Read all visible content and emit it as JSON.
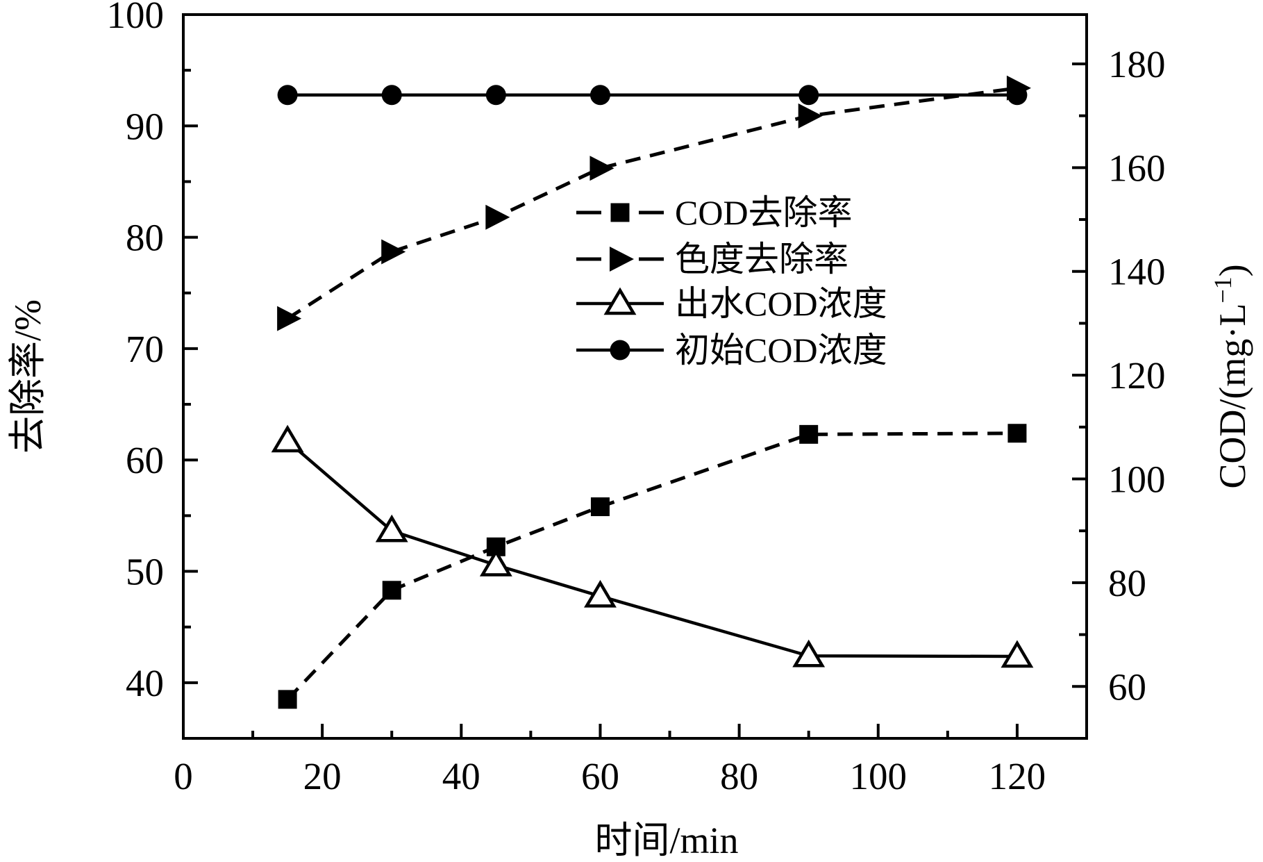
{
  "colors": {
    "ink": "#000000",
    "background": "#ffffff"
  },
  "chart_data": {
    "type": "line",
    "x": [
      15,
      30,
      45,
      60,
      90,
      120
    ],
    "xlabel": "时间/min",
    "ylabel_left": "去除率/%",
    "ylabel_right": "COD/(mg·L⁻¹)",
    "xlim": [
      0,
      130
    ],
    "ylim_left": [
      35,
      100
    ],
    "ylim_right": [
      50,
      189.5
    ],
    "xticks": [
      0,
      20,
      40,
      60,
      80,
      100,
      120
    ],
    "xminorticks": [
      10,
      30,
      50,
      70,
      90,
      110
    ],
    "yticks_left": [
      40,
      50,
      60,
      70,
      80,
      90,
      100
    ],
    "yminorticks_left": [
      45,
      55,
      65,
      75,
      85,
      95
    ],
    "yticks_right": [
      60,
      80,
      100,
      120,
      140,
      160,
      180
    ],
    "yminorticks_right": [
      70,
      90,
      110,
      130,
      150,
      170
    ],
    "grid": false,
    "legend": {
      "position": "inside-upper-right",
      "frame": false
    },
    "series": [
      {
        "key": "cod-removal-rate",
        "name": "COD去除率",
        "axis": "left",
        "line": "dashed",
        "marker": "filled-square",
        "values": [
          38.5,
          48.3,
          52.2,
          55.8,
          62.3,
          62.4
        ]
      },
      {
        "key": "chroma-removal-rate",
        "name": "色度去除率",
        "axis": "left",
        "line": "dashed",
        "marker": "filled-right-triangle",
        "values": [
          72.7,
          78.7,
          81.8,
          86.2,
          90.9,
          93.4
        ]
      },
      {
        "key": "effluent-cod",
        "name": "出水COD浓度",
        "axis": "right",
        "line": "solid",
        "marker": "open-up-triangle",
        "values": [
          107.3,
          90.0,
          83.4,
          77.4,
          65.9,
          65.8
        ]
      },
      {
        "key": "initial-cod",
        "name": "初始COD浓度",
        "axis": "right",
        "line": "solid",
        "marker": "filled-circle",
        "values": [
          174,
          174,
          174,
          174,
          174,
          174
        ]
      }
    ]
  }
}
